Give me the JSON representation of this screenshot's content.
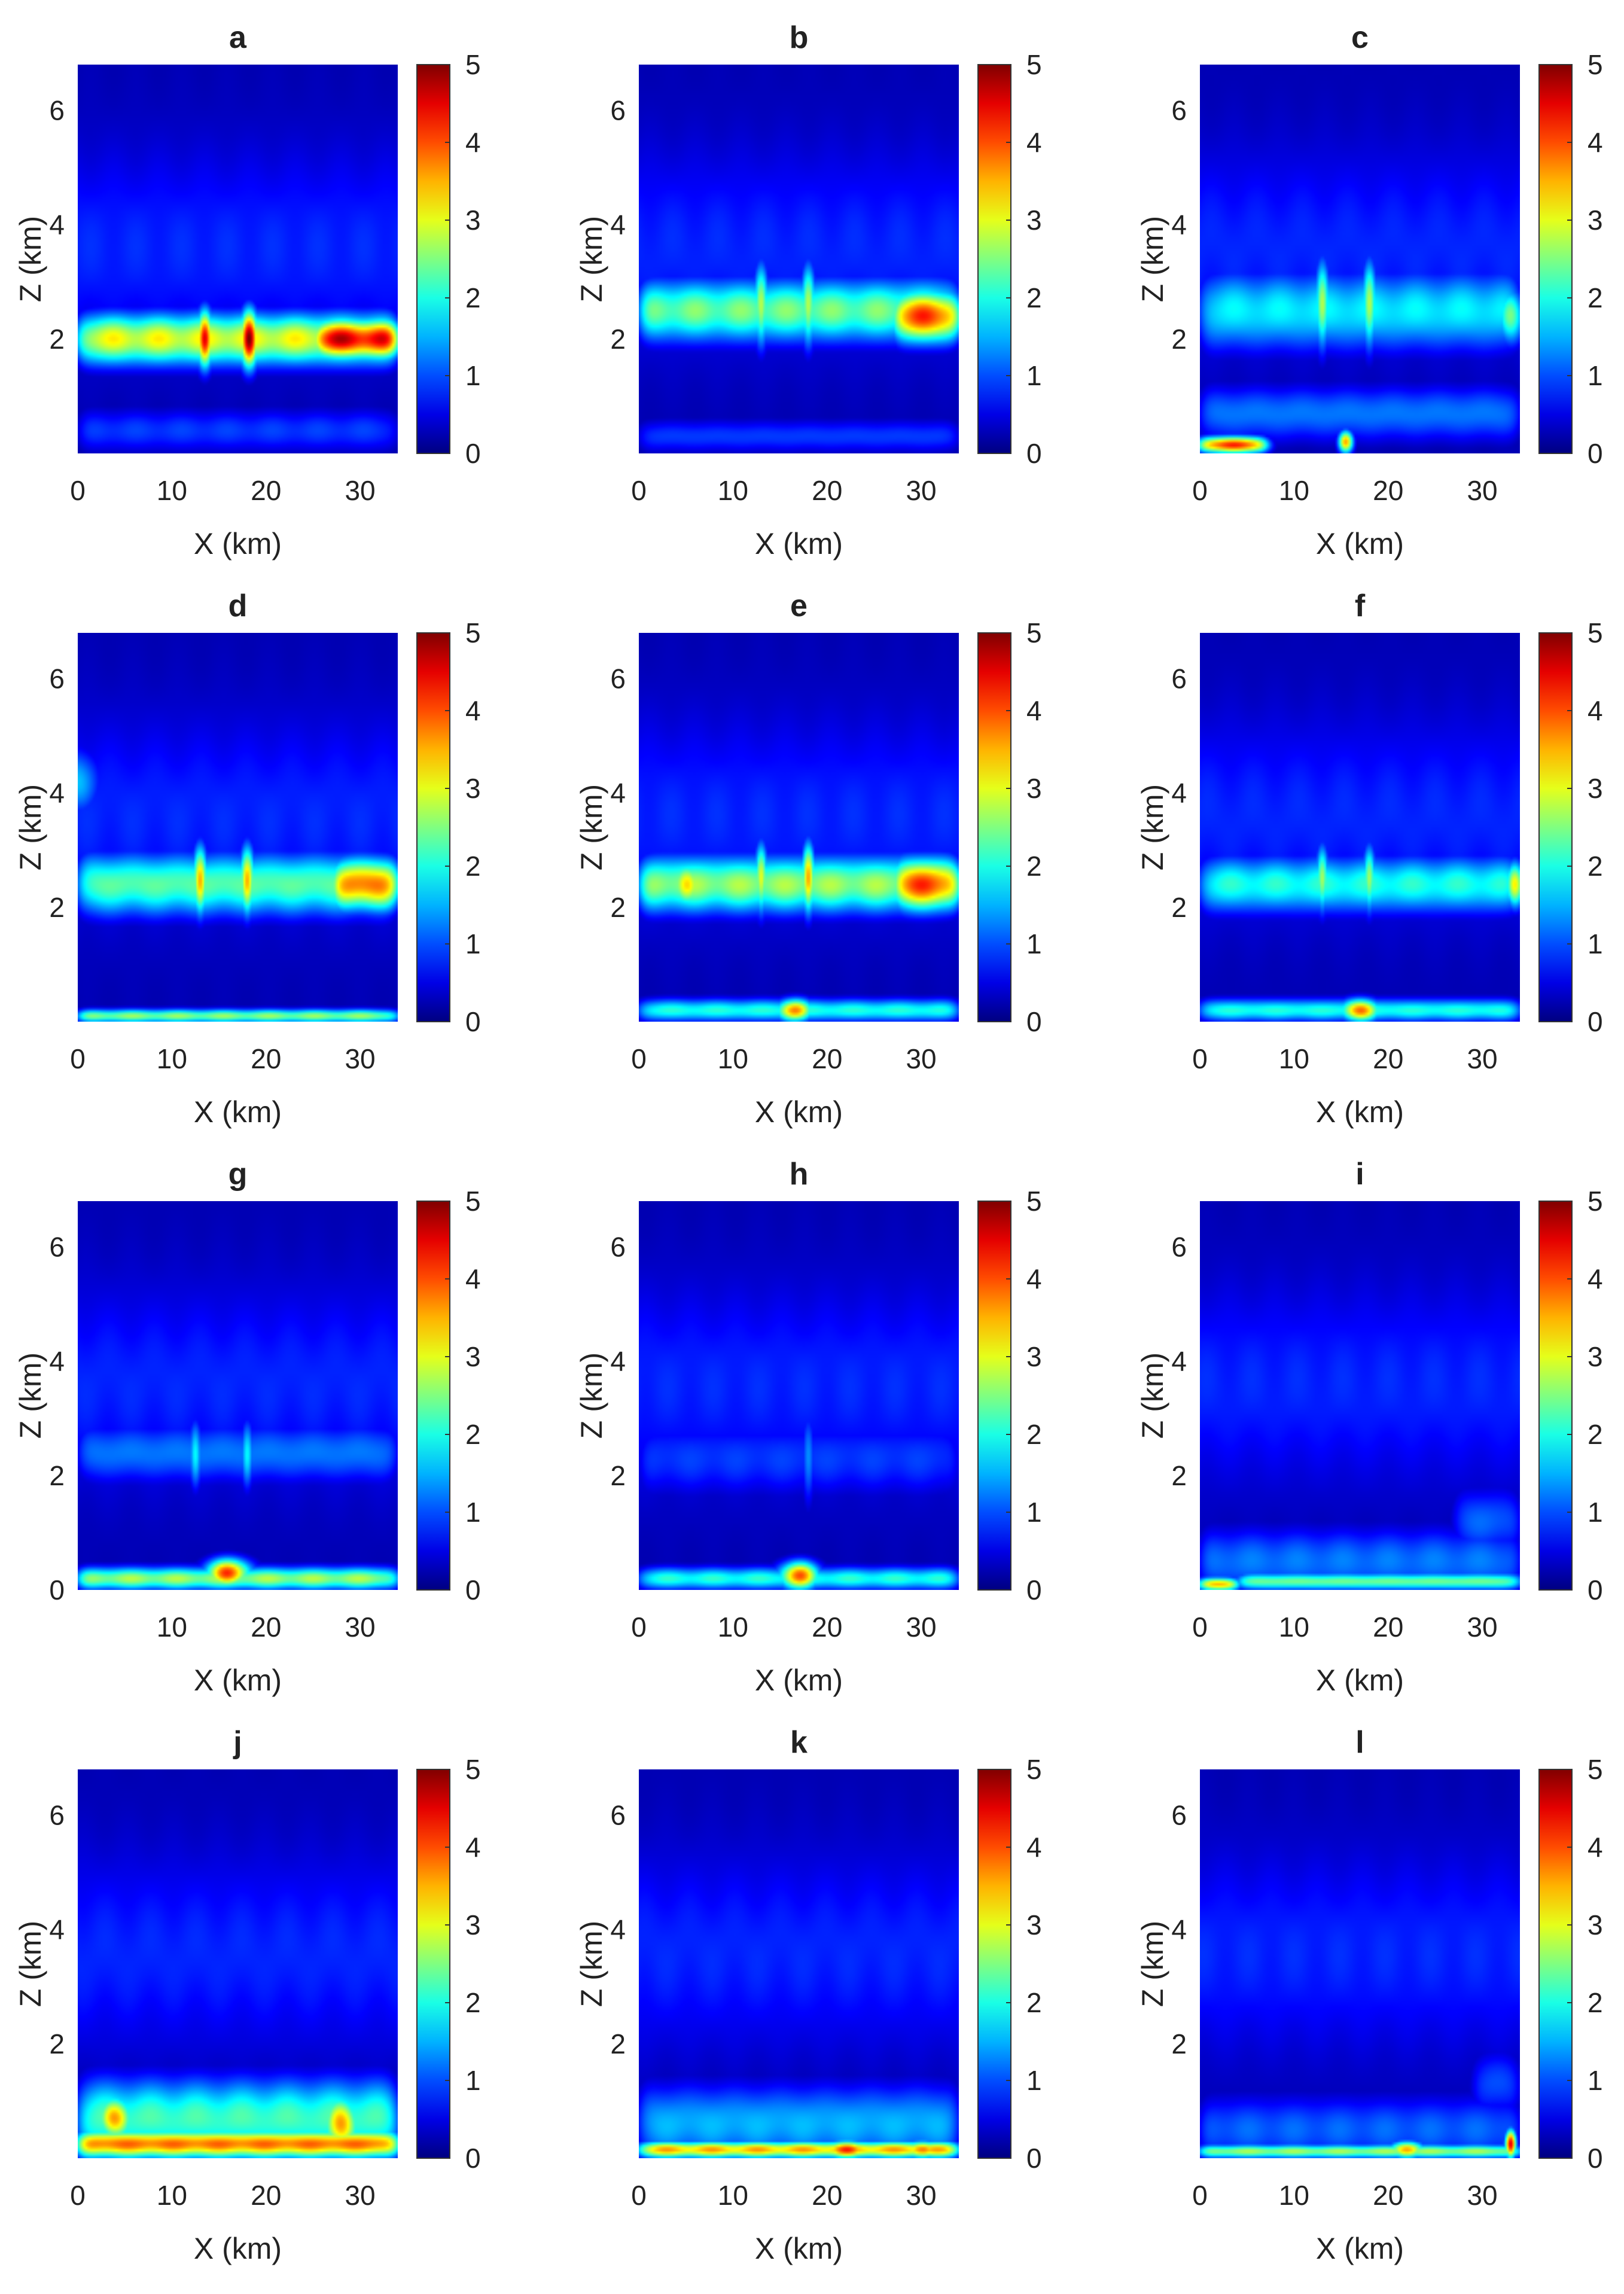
{
  "figure": {
    "panel_titles": [
      "a",
      "b",
      "c",
      "d",
      "e",
      "f",
      "g",
      "h",
      "i",
      "j",
      "k",
      "l"
    ]
  },
  "chart_data": [
    {
      "panel": "a",
      "type": "heatmap",
      "title": "a",
      "xlabel": "X (km)",
      "ylabel": "Z (km)",
      "xlim": [
        0,
        34
      ],
      "ylim": [
        0,
        6.8
      ],
      "xticks": [
        0,
        10,
        20,
        30
      ],
      "yticks": [
        2,
        4,
        6
      ],
      "colorbar": {
        "min": 0,
        "max": 5,
        "ticks": [
          0,
          1,
          2,
          3,
          4,
          5
        ],
        "colormap": "jet"
      },
      "features": [
        {
          "kind": "band",
          "z": 2.0,
          "zw": 0.45,
          "peak": 3.0,
          "x0": 0,
          "x1": 34
        },
        {
          "kind": "band",
          "z": 2.0,
          "zw": 0.35,
          "peak": 4.5,
          "x0": 25,
          "x1": 34
        },
        {
          "kind": "spot",
          "x": 13.5,
          "z": 2.0,
          "sx": 0.9,
          "sz": 0.5,
          "v": 4.2
        },
        {
          "kind": "spot",
          "x": 18.2,
          "z": 2.0,
          "sx": 1.0,
          "sz": 0.5,
          "v": 4.7
        },
        {
          "kind": "band",
          "z": 0.4,
          "zw": 0.4,
          "peak": 0.9,
          "x0": 0,
          "x1": 34
        }
      ]
    },
    {
      "panel": "b",
      "type": "heatmap",
      "title": "b",
      "xlabel": "X (km)",
      "ylabel": "Z (km)",
      "xlim": [
        0,
        34
      ],
      "ylim": [
        0,
        6.8
      ],
      "xticks": [
        0,
        10,
        20,
        30
      ],
      "yticks": [
        2,
        4,
        6
      ],
      "colorbar": {
        "min": 0,
        "max": 5,
        "ticks": [
          0,
          1,
          2,
          3,
          4,
          5
        ],
        "colormap": "jet"
      },
      "features": [
        {
          "kind": "band",
          "z": 2.5,
          "zw": 0.55,
          "peak": 2.4,
          "x0": 0,
          "x1": 34
        },
        {
          "kind": "band",
          "z": 2.4,
          "zw": 0.45,
          "peak": 4.0,
          "x0": 27,
          "x1": 34
        },
        {
          "kind": "spot",
          "x": 13.0,
          "z": 2.6,
          "sx": 0.8,
          "sz": 0.7,
          "v": 3.0
        },
        {
          "kind": "spot",
          "x": 18.0,
          "z": 2.6,
          "sx": 0.8,
          "sz": 0.7,
          "v": 3.0
        },
        {
          "kind": "band",
          "z": 0.3,
          "zw": 0.3,
          "peak": 0.9,
          "x0": 0,
          "x1": 34
        }
      ]
    },
    {
      "panel": "c",
      "type": "heatmap",
      "title": "c",
      "xlabel": "X (km)",
      "ylabel": "Z (km)",
      "xlim": [
        0,
        34
      ],
      "ylim": [
        0,
        6.8
      ],
      "xticks": [
        0,
        10,
        20,
        30
      ],
      "yticks": [
        2,
        4,
        6
      ],
      "colorbar": {
        "min": 0,
        "max": 5,
        "ticks": [
          0,
          1,
          2,
          3,
          4,
          5
        ],
        "colormap": "jet"
      },
      "features": [
        {
          "kind": "band",
          "z": 2.5,
          "zw": 0.7,
          "peak": 1.8,
          "x0": 0,
          "x1": 34
        },
        {
          "kind": "spot",
          "x": 13.0,
          "z": 2.6,
          "sx": 0.8,
          "sz": 0.8,
          "v": 2.6
        },
        {
          "kind": "spot",
          "x": 18.0,
          "z": 2.6,
          "sx": 0.8,
          "sz": 0.8,
          "v": 2.6
        },
        {
          "kind": "spot",
          "x": 33.0,
          "z": 2.4,
          "sx": 1.5,
          "sz": 0.5,
          "v": 2.4
        },
        {
          "kind": "band",
          "z": 0.15,
          "zw": 0.15,
          "peak": 4.0,
          "x0": 0,
          "x1": 7
        },
        {
          "kind": "spot",
          "x": 15.5,
          "z": 0.2,
          "sx": 0.8,
          "sz": 0.2,
          "v": 3.8
        },
        {
          "kind": "band",
          "z": 0.7,
          "zw": 0.5,
          "peak": 1.2,
          "x0": 0,
          "x1": 34
        }
      ]
    },
    {
      "panel": "d",
      "type": "heatmap",
      "title": "d",
      "xlabel": "X (km)",
      "ylabel": "Z (km)",
      "xlim": [
        0,
        34
      ],
      "ylim": [
        0,
        6.8
      ],
      "xticks": [
        0,
        10,
        20,
        30
      ],
      "yticks": [
        2,
        4,
        6
      ],
      "colorbar": {
        "min": 0,
        "max": 5,
        "ticks": [
          0,
          1,
          2,
          3,
          4,
          5
        ],
        "colormap": "jet"
      },
      "features": [
        {
          "kind": "band",
          "z": 2.4,
          "zw": 0.55,
          "peak": 2.3,
          "x0": 0,
          "x1": 34
        },
        {
          "kind": "band",
          "z": 2.4,
          "zw": 0.45,
          "peak": 3.8,
          "x0": 27,
          "x1": 34
        },
        {
          "kind": "spot",
          "x": 13.0,
          "z": 2.5,
          "sx": 0.8,
          "sz": 0.6,
          "v": 3.5
        },
        {
          "kind": "spot",
          "x": 18.0,
          "z": 2.5,
          "sx": 0.8,
          "sz": 0.6,
          "v": 3.5
        },
        {
          "kind": "band",
          "z": 0.1,
          "zw": 0.12,
          "peak": 2.5,
          "x0": 0,
          "x1": 34
        },
        {
          "kind": "spot",
          "x": 0,
          "z": 4.2,
          "sx": 2.5,
          "sz": 0.6,
          "v": 1.6
        }
      ]
    },
    {
      "panel": "e",
      "type": "heatmap",
      "title": "e",
      "xlabel": "X (km)",
      "ylabel": "Z (km)",
      "xlim": [
        0,
        34
      ],
      "ylim": [
        0,
        6.8
      ],
      "xticks": [
        0,
        10,
        20,
        30
      ],
      "yticks": [
        2,
        4,
        6
      ],
      "colorbar": {
        "min": 0,
        "max": 5,
        "ticks": [
          0,
          1,
          2,
          3,
          4,
          5
        ],
        "colormap": "jet"
      },
      "features": [
        {
          "kind": "band",
          "z": 2.4,
          "zw": 0.5,
          "peak": 2.6,
          "x0": 0,
          "x1": 34
        },
        {
          "kind": "band",
          "z": 2.4,
          "zw": 0.45,
          "peak": 4.0,
          "x0": 27,
          "x1": 34
        },
        {
          "kind": "spot",
          "x": 5.0,
          "z": 2.4,
          "sx": 1.8,
          "sz": 0.4,
          "v": 3.2
        },
        {
          "kind": "spot",
          "x": 13.0,
          "z": 2.5,
          "sx": 0.7,
          "sz": 0.6,
          "v": 3.2
        },
        {
          "kind": "spot",
          "x": 18.0,
          "z": 2.5,
          "sx": 0.7,
          "sz": 0.6,
          "v": 3.8
        },
        {
          "kind": "spot",
          "x": 16.5,
          "z": 0.2,
          "sx": 2.0,
          "sz": 0.2,
          "v": 3.8
        },
        {
          "kind": "band",
          "z": 0.2,
          "zw": 0.2,
          "peak": 2.0,
          "x0": 0,
          "x1": 34
        }
      ]
    },
    {
      "panel": "f",
      "type": "heatmap",
      "title": "f",
      "xlabel": "X (km)",
      "ylabel": "Z (km)",
      "xlim": [
        0,
        34
      ],
      "ylim": [
        0,
        6.8
      ],
      "xticks": [
        0,
        10,
        20,
        30
      ],
      "yticks": [
        2,
        4,
        6
      ],
      "colorbar": {
        "min": 0,
        "max": 5,
        "ticks": [
          0,
          1,
          2,
          3,
          4,
          5
        ],
        "colormap": "jet"
      },
      "features": [
        {
          "kind": "band",
          "z": 2.4,
          "zw": 0.5,
          "peak": 2.0,
          "x0": 0,
          "x1": 34
        },
        {
          "kind": "spot",
          "x": 33.5,
          "z": 2.4,
          "sx": 1.0,
          "sz": 0.4,
          "v": 3.2
        },
        {
          "kind": "spot",
          "x": 13.0,
          "z": 2.5,
          "sx": 0.7,
          "sz": 0.6,
          "v": 2.5
        },
        {
          "kind": "spot",
          "x": 18.0,
          "z": 2.5,
          "sx": 0.7,
          "sz": 0.6,
          "v": 2.5
        },
        {
          "kind": "spot",
          "x": 17.0,
          "z": 0.2,
          "sx": 2.2,
          "sz": 0.2,
          "v": 3.8
        },
        {
          "kind": "band",
          "z": 0.2,
          "zw": 0.2,
          "peak": 2.0,
          "x0": 0,
          "x1": 34
        }
      ]
    },
    {
      "panel": "g",
      "type": "heatmap",
      "title": "g",
      "xlabel": "X (km)",
      "ylabel": "Z (km)",
      "xlim": [
        0,
        34
      ],
      "ylim": [
        0,
        6.8
      ],
      "xticks": [
        10,
        20,
        30
      ],
      "yticks": [
        0,
        2,
        4,
        6
      ],
      "colorbar": {
        "min": 0,
        "max": 5,
        "ticks": [
          0,
          1,
          2,
          3,
          4,
          5
        ],
        "colormap": "jet"
      },
      "features": [
        {
          "kind": "band",
          "z": 2.4,
          "zw": 0.55,
          "peak": 1.2,
          "x0": 0,
          "x1": 34
        },
        {
          "kind": "spot",
          "x": 12.5,
          "z": 2.4,
          "sx": 0.7,
          "sz": 0.6,
          "v": 1.9
        },
        {
          "kind": "spot",
          "x": 18.0,
          "z": 2.4,
          "sx": 0.7,
          "sz": 0.6,
          "v": 1.9
        },
        {
          "kind": "spot",
          "x": 16.0,
          "z": 0.3,
          "sx": 2.5,
          "sz": 0.25,
          "v": 4.0
        },
        {
          "kind": "band",
          "z": 0.2,
          "zw": 0.2,
          "peak": 2.6,
          "x0": 0,
          "x1": 34
        }
      ]
    },
    {
      "panel": "h",
      "type": "heatmap",
      "title": "h",
      "xlabel": "X (km)",
      "ylabel": "Z (km)",
      "xlim": [
        0,
        34
      ],
      "ylim": [
        0,
        6.8
      ],
      "xticks": [
        0,
        10,
        20,
        30
      ],
      "yticks": [
        2,
        4,
        6
      ],
      "colorbar": {
        "min": 0,
        "max": 5,
        "ticks": [
          0,
          1,
          2,
          3,
          4,
          5
        ],
        "colormap": "jet"
      },
      "features": [
        {
          "kind": "band",
          "z": 2.3,
          "zw": 0.7,
          "peak": 0.9,
          "x0": 0,
          "x1": 34
        },
        {
          "kind": "spot",
          "x": 18.0,
          "z": 2.3,
          "sx": 0.7,
          "sz": 0.8,
          "v": 1.4
        },
        {
          "kind": "spot",
          "x": 17.0,
          "z": 0.25,
          "sx": 2.3,
          "sz": 0.25,
          "v": 3.8
        },
        {
          "kind": "band",
          "z": 0.2,
          "zw": 0.2,
          "peak": 2.0,
          "x0": 0,
          "x1": 34
        }
      ]
    },
    {
      "panel": "i",
      "type": "heatmap",
      "title": "i",
      "xlabel": "X (km)",
      "ylabel": "Z (km)",
      "xlim": [
        0,
        34
      ],
      "ylim": [
        0,
        6.8
      ],
      "xticks": [
        0,
        10,
        20,
        30
      ],
      "yticks": [
        2,
        4,
        6
      ],
      "colorbar": {
        "min": 0,
        "max": 5,
        "ticks": [
          0,
          1,
          2,
          3,
          4,
          5
        ],
        "colormap": "jet"
      },
      "features": [
        {
          "kind": "band",
          "z": 0.5,
          "zw": 0.6,
          "peak": 1.2,
          "x0": 0,
          "x1": 34
        },
        {
          "kind": "band",
          "z": 0.1,
          "zw": 0.12,
          "peak": 3.6,
          "x0": 0,
          "x1": 4
        },
        {
          "kind": "band",
          "z": 0.15,
          "zw": 0.15,
          "peak": 2.4,
          "x0": 4,
          "x1": 34
        },
        {
          "kind": "band",
          "z": 1.2,
          "zw": 0.6,
          "peak": 1.1,
          "x0": 27,
          "x1": 34
        }
      ]
    },
    {
      "panel": "j",
      "type": "heatmap",
      "title": "j",
      "xlabel": "X (km)",
      "ylabel": "Z (km)",
      "xlim": [
        0,
        34
      ],
      "ylim": [
        0,
        6.8
      ],
      "xticks": [
        0,
        10,
        20,
        30
      ],
      "yticks": [
        2,
        4,
        6
      ],
      "colorbar": {
        "min": 0,
        "max": 5,
        "ticks": [
          0,
          1,
          2,
          3,
          4,
          5
        ],
        "colormap": "jet"
      },
      "features": [
        {
          "kind": "band",
          "z": 0.7,
          "zw": 0.7,
          "peak": 2.2,
          "x0": 0,
          "x1": 34
        },
        {
          "kind": "band",
          "z": 0.25,
          "zw": 0.25,
          "peak": 3.8,
          "x0": 0,
          "x1": 34
        },
        {
          "kind": "spot",
          "x": 4.0,
          "z": 0.7,
          "sx": 2.0,
          "sz": 0.4,
          "v": 3.6
        },
        {
          "kind": "spot",
          "x": 28.0,
          "z": 0.6,
          "sx": 2.0,
          "sz": 0.5,
          "v": 3.6
        }
      ]
    },
    {
      "panel": "k",
      "type": "heatmap",
      "title": "k",
      "xlabel": "X (km)",
      "ylabel": "Z (km)",
      "xlim": [
        0,
        34
      ],
      "ylim": [
        0,
        6.8
      ],
      "xticks": [
        0,
        10,
        20,
        30
      ],
      "yticks": [
        2,
        4,
        6
      ],
      "colorbar": {
        "min": 0,
        "max": 5,
        "ticks": [
          0,
          1,
          2,
          3,
          4,
          5
        ],
        "colormap": "jet"
      },
      "features": [
        {
          "kind": "band",
          "z": 0.6,
          "zw": 0.7,
          "peak": 1.5,
          "x0": 0,
          "x1": 34
        },
        {
          "kind": "band",
          "z": 0.15,
          "zw": 0.15,
          "peak": 3.4,
          "x0": 0,
          "x1": 34
        },
        {
          "kind": "spot",
          "x": 22.0,
          "z": 0.15,
          "sx": 3.0,
          "sz": 0.15,
          "v": 4.0
        },
        {
          "kind": "spot",
          "x": 30.0,
          "z": 0.15,
          "sx": 2.0,
          "sz": 0.15,
          "v": 4.0
        }
      ]
    },
    {
      "panel": "l",
      "type": "heatmap",
      "title": "l",
      "xlabel": "X (km)",
      "ylabel": "Z (km)",
      "xlim": [
        0,
        34
      ],
      "ylim": [
        0,
        6.8
      ],
      "xticks": [
        0,
        10,
        20,
        30
      ],
      "yticks": [
        2,
        4,
        6
      ],
      "colorbar": {
        "min": 0,
        "max": 5,
        "ticks": [
          0,
          1,
          2,
          3,
          4,
          5
        ],
        "colormap": "jet"
      },
      "features": [
        {
          "kind": "band",
          "z": 0.5,
          "zw": 0.6,
          "peak": 1.1,
          "x0": 0,
          "x1": 34
        },
        {
          "kind": "band",
          "z": 0.12,
          "zw": 0.12,
          "peak": 2.6,
          "x0": 0,
          "x1": 34
        },
        {
          "kind": "spot",
          "x": 22.0,
          "z": 0.15,
          "sx": 1.8,
          "sz": 0.15,
          "v": 3.8
        },
        {
          "kind": "spot",
          "x": 33.0,
          "z": 0.25,
          "sx": 0.6,
          "sz": 0.25,
          "v": 4.5
        },
        {
          "kind": "band",
          "z": 1.3,
          "zw": 0.6,
          "peak": 1.0,
          "x0": 29,
          "x1": 34
        }
      ]
    }
  ]
}
